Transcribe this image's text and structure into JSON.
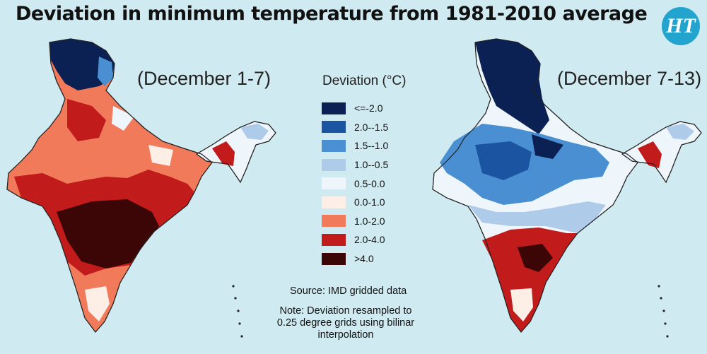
{
  "title": "Deviation in minimum temperature from 1981-2010 average",
  "logo_text": "HT",
  "maps": [
    {
      "period": "(December 1-7)"
    },
    {
      "period": "(December 7-13)"
    }
  ],
  "legend": {
    "title": "Deviation (°C)",
    "items": [
      {
        "label": "<=-2.0",
        "color": "#0b2154"
      },
      {
        "label": "2.0--1.5",
        "color": "#1b55a2"
      },
      {
        "label": "1.5--1.0",
        "color": "#4a8fd1"
      },
      {
        "label": "1.0--0.5",
        "color": "#aecbea"
      },
      {
        "label": "0.5-0.0",
        "color": "#eef5fb"
      },
      {
        "label": "0.0-1.0",
        "color": "#fdeee6"
      },
      {
        "label": "1.0-2.0",
        "color": "#f07a5a"
      },
      {
        "label": "2.0-4.0",
        "color": "#c21b1b"
      },
      {
        "label": ">4.0",
        "color": "#3d0606"
      }
    ]
  },
  "source": "Source: IMD gridded data",
  "note": "Note: Deviation resampled to 0.25 degree grids using bilinar interpolation"
}
